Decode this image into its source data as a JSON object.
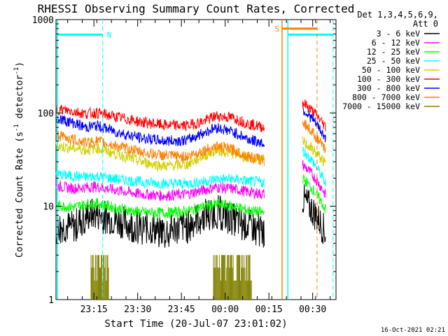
{
  "chart_data": {
    "type": "line",
    "title": "RHESSI Observing Summary Count Rates, Corrected",
    "xlabel": "Start Time (20-Jul-07 23:01:02)",
    "ylabel": {
      "main": "Corrected Count Rate (s",
      "exp1": "-1",
      "mid": " detector",
      "exp2": "-1",
      "end": ")"
    },
    "y_scale": "log",
    "ylim": [
      1,
      1000
    ],
    "xlim": [
      1,
      97
    ],
    "y_ticks": [
      {
        "v": 1,
        "label": "1"
      },
      {
        "v": 10,
        "label": "10"
      },
      {
        "v": 100,
        "label": "100"
      },
      {
        "v": 1000,
        "label": "1000"
      }
    ],
    "x_ticks": [
      {
        "v": 14,
        "label": "23:15"
      },
      {
        "v": 29,
        "label": "23:30"
      },
      {
        "v": 44,
        "label": "23:45"
      },
      {
        "v": 59,
        "label": "00:00"
      },
      {
        "v": 74,
        "label": "00:15"
      },
      {
        "v": 89,
        "label": "00:30"
      }
    ],
    "legend": {
      "header": [
        "Det 1,3,4,5,6,9,",
        "Att 0"
      ],
      "position": "right"
    },
    "series": [
      {
        "name": "3 - 6 keV",
        "color": "#000000",
        "values": [
          6.2,
          6.0,
          8.0,
          8.3,
          7.0,
          6.0,
          5.5,
          6.2,
          8.2,
          9.0,
          7.2,
          6.2,
          5.5
        ],
        "after_gap": [
          12,
          5
        ]
      },
      {
        "name": "6 - 12 keV",
        "color": "#ff00ff",
        "values": [
          16.5,
          15.5,
          16.0,
          16.2,
          14.8,
          13.5,
          13.0,
          13.5,
          15.0,
          16.0,
          15.3,
          14.2,
          13.5
        ],
        "after_gap": [
          28,
          13
        ]
      },
      {
        "name": "12 - 25 keV",
        "color": "#00ff00",
        "values": [
          10.2,
          9.8,
          10.5,
          10.8,
          9.5,
          8.6,
          8.5,
          8.8,
          10.0,
          10.5,
          10.0,
          9.0,
          8.5
        ],
        "after_gap": [
          20,
          9
        ]
      },
      {
        "name": "25 - 50 keV",
        "color": "#00ffff",
        "values": [
          22.0,
          21.0,
          20.5,
          21.0,
          19.5,
          18.2,
          17.5,
          17.5,
          18.5,
          19.5,
          19.5,
          18.5,
          18.0
        ],
        "after_gap": [
          40,
          17
        ]
      },
      {
        "name": "50 - 100 keV",
        "color": "#d0d000",
        "values": [
          44.0,
          42.0,
          40.0,
          42.0,
          36.0,
          30.0,
          27.0,
          28.0,
          35.0,
          40.0,
          37.0,
          33.0,
          31.0
        ],
        "after_gap": [
          50,
          28
        ]
      },
      {
        "name": "100 - 300 keV",
        "color": "#ff0000",
        "values": [
          110.0,
          104.0,
          98.0,
          100.0,
          90.0,
          80.0,
          74.0,
          73.0,
          82.0,
          93.0,
          88.0,
          76.0,
          70.0
        ],
        "after_gap": [
          130,
          70
        ]
      },
      {
        "name": "300 - 800 keV",
        "color": "#0000ff",
        "values": [
          88.0,
          78.0,
          70.0,
          73.0,
          62.0,
          54.0,
          50.0,
          51.0,
          62.0,
          70.0,
          62.0,
          52.0,
          47.0
        ],
        "after_gap": [
          110,
          52
        ]
      },
      {
        "name": "800 - 7000 keV",
        "color": "#ff8000",
        "values": [
          58.0,
          52.0,
          48.0,
          50.0,
          44.0,
          38.0,
          35.0,
          34.0,
          40.0,
          44.0,
          40.0,
          34.0,
          31.0
        ],
        "after_gap": [
          80,
          38
        ]
      },
      {
        "name": "7000 - 15000 keV",
        "color": "#808000",
        "values": [],
        "after_gap": []
      }
    ],
    "series_x": [
      1,
      7,
      11,
      15,
      22,
      30,
      38,
      46,
      52,
      56,
      62,
      67,
      72.5
    ],
    "after_gap_x": [
      85.5,
      93.5
    ],
    "annotations": [
      {
        "label": "N",
        "color": "#00ffff"
      },
      {
        "label": "S",
        "color": "#ff8000"
      }
    ],
    "timestamp": "16-Oct-2021 02:21"
  }
}
